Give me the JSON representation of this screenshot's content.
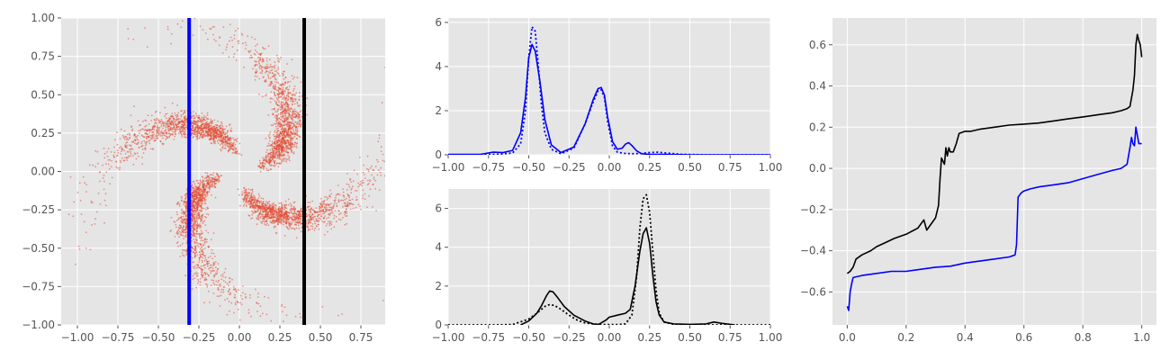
{
  "chart_data": [
    {
      "type": "scatter",
      "description": "Pinwheel point cloud with two vertical slice lines",
      "xlim": [
        -1.1,
        0.9
      ],
      "ylim": [
        -1.0,
        1.0
      ],
      "xticks": [
        -1.0,
        -0.75,
        -0.5,
        -0.25,
        0.0,
        0.25,
        0.5,
        0.75
      ],
      "yticks": [
        -1.0,
        -0.75,
        -0.5,
        -0.25,
        0.0,
        0.25,
        0.5,
        0.75,
        1.0
      ],
      "xtick_labels": [
        "−1.00",
        "−0.75",
        "−0.50",
        "−0.25",
        "0.00",
        "0.25",
        "0.50",
        "0.75"
      ],
      "ytick_labels": [
        "−1.00",
        "−0.75",
        "−0.50",
        "−0.25",
        "0.00",
        "0.25",
        "0.50",
        "0.75",
        "1.00"
      ],
      "point_color": "#E24A33",
      "arms": [
        {
          "center": [
            0.28,
            0.22
          ],
          "radius": 0.3,
          "angle": 0
        },
        {
          "center": [
            -0.22,
            0.28
          ],
          "radius": 0.3,
          "angle": 90
        },
        {
          "center": [
            -0.28,
            -0.22
          ],
          "radius": 0.3,
          "angle": 180
        },
        {
          "center": [
            0.22,
            -0.28
          ],
          "radius": 0.3,
          "angle": 270
        }
      ],
      "vlines": [
        {
          "x": -0.31,
          "color": "#0000ff"
        },
        {
          "x": 0.4,
          "color": "#000000"
        }
      ],
      "grid": true
    },
    {
      "type": "line",
      "xlim": [
        -1.0,
        1.0
      ],
      "ylim": [
        0,
        6.2
      ],
      "xticks": [
        -1.0,
        -0.75,
        -0.5,
        -0.25,
        0.0,
        0.25,
        0.5,
        0.75,
        1.0
      ],
      "yticks": [
        0,
        2,
        4,
        6
      ],
      "xtick_labels": [
        "−1.00",
        "−0.75",
        "−0.50",
        "−0.25",
        "0.00",
        "0.25",
        "0.50",
        "0.75",
        "1.00"
      ],
      "ytick_labels": [
        "0",
        "2",
        "4",
        "6"
      ],
      "series": [
        {
          "style": "solid",
          "color": "#0000ff",
          "x": [
            -1.0,
            -0.8,
            -0.72,
            -0.66,
            -0.6,
            -0.55,
            -0.52,
            -0.5,
            -0.48,
            -0.46,
            -0.43,
            -0.4,
            -0.36,
            -0.3,
            -0.22,
            -0.15,
            -0.1,
            -0.07,
            -0.05,
            -0.03,
            -0.01,
            0.02,
            0.05,
            0.08,
            0.1,
            0.12,
            0.14,
            0.17,
            0.2,
            0.25,
            0.35,
            0.5,
            1.0
          ],
          "y": [
            0.02,
            0.02,
            0.12,
            0.1,
            0.2,
            1.0,
            2.6,
            4.4,
            5.0,
            4.7,
            3.3,
            1.6,
            0.45,
            0.1,
            0.35,
            1.4,
            2.5,
            3.0,
            3.05,
            2.7,
            1.7,
            0.6,
            0.25,
            0.3,
            0.48,
            0.55,
            0.42,
            0.18,
            0.05,
            0.02,
            0.02,
            0.0,
            0.0
          ]
        },
        {
          "style": "dotted",
          "color": "#0000ff",
          "x": [
            -1.0,
            -0.8,
            -0.7,
            -0.6,
            -0.55,
            -0.52,
            -0.5,
            -0.48,
            -0.46,
            -0.44,
            -0.42,
            -0.4,
            -0.36,
            -0.3,
            -0.22,
            -0.15,
            -0.1,
            -0.07,
            -0.05,
            -0.03,
            -0.01,
            0.02,
            0.05,
            0.1,
            0.15,
            0.2,
            0.25,
            0.3,
            0.35,
            0.45,
            0.6,
            1.0
          ],
          "y": [
            0.0,
            0.0,
            0.02,
            0.08,
            0.5,
            2.0,
            4.4,
            5.8,
            5.6,
            4.0,
            2.2,
            1.0,
            0.25,
            0.05,
            0.3,
            1.4,
            2.4,
            2.9,
            2.95,
            2.6,
            1.5,
            0.4,
            0.12,
            0.06,
            0.05,
            0.06,
            0.1,
            0.12,
            0.08,
            0.02,
            0.0,
            0.0
          ]
        }
      ],
      "grid": true
    },
    {
      "type": "line",
      "xlim": [
        -1.0,
        1.0
      ],
      "ylim": [
        0,
        7.0
      ],
      "xticks": [
        -1.0,
        -0.75,
        -0.5,
        -0.25,
        0.0,
        0.25,
        0.5,
        0.75,
        1.0
      ],
      "yticks": [
        0,
        2,
        4,
        6
      ],
      "xtick_labels": [
        "−1.00",
        "−0.75",
        "−0.50",
        "−0.25",
        "0.00",
        "0.25",
        "0.50",
        "0.75",
        "1.00"
      ],
      "ytick_labels": [
        "0",
        "2",
        "4",
        "6"
      ],
      "series": [
        {
          "style": "solid",
          "color": "#000000",
          "x": [
            -0.55,
            -0.5,
            -0.45,
            -0.42,
            -0.39,
            -0.37,
            -0.35,
            -0.32,
            -0.28,
            -0.22,
            -0.15,
            -0.1,
            -0.07,
            -0.05,
            -0.02,
            0.0,
            0.05,
            0.1,
            0.13,
            0.16,
            0.19,
            0.21,
            0.23,
            0.25,
            0.27,
            0.29,
            0.31,
            0.34,
            0.4,
            0.5,
            0.6,
            0.65,
            0.7,
            0.78
          ],
          "y": [
            0.0,
            0.2,
            0.6,
            1.0,
            1.5,
            1.75,
            1.7,
            1.4,
            0.95,
            0.5,
            0.2,
            0.05,
            0.02,
            0.1,
            0.25,
            0.4,
            0.5,
            0.6,
            0.8,
            2.0,
            3.8,
            4.7,
            5.0,
            4.2,
            2.6,
            1.2,
            0.5,
            0.15,
            0.05,
            0.03,
            0.05,
            0.15,
            0.08,
            0.0
          ]
        },
        {
          "style": "dotted",
          "color": "#000000",
          "x": [
            -1.0,
            -0.7,
            -0.6,
            -0.5,
            -0.45,
            -0.4,
            -0.37,
            -0.34,
            -0.3,
            -0.25,
            -0.2,
            -0.15,
            -0.1,
            -0.05,
            0.0,
            0.05,
            0.1,
            0.14,
            0.17,
            0.19,
            0.21,
            0.23,
            0.25,
            0.27,
            0.29,
            0.31,
            0.34,
            0.4,
            0.5,
            0.6,
            0.7,
            1.0
          ],
          "y": [
            0.0,
            0.0,
            0.02,
            0.3,
            0.6,
            0.95,
            1.05,
            1.0,
            0.8,
            0.5,
            0.25,
            0.1,
            0.05,
            0.02,
            0.02,
            0.02,
            0.05,
            0.5,
            2.5,
            5.0,
            6.5,
            6.7,
            5.8,
            3.8,
            1.8,
            0.6,
            0.15,
            0.03,
            0.0,
            0.0,
            0.0,
            0.0
          ]
        }
      ],
      "grid": true
    },
    {
      "type": "line",
      "xlim": [
        -0.05,
        1.05
      ],
      "ylim": [
        -0.76,
        0.73
      ],
      "xticks": [
        0.0,
        0.2,
        0.4,
        0.6,
        0.8,
        1.0
      ],
      "yticks": [
        -0.6,
        -0.4,
        -0.2,
        0.0,
        0.2,
        0.4,
        0.6
      ],
      "xtick_labels": [
        "0.0",
        "0.2",
        "0.4",
        "0.6",
        "0.8",
        "1.0"
      ],
      "ytick_labels": [
        "−0.6",
        "−0.4",
        "−0.2",
        "0.0",
        "0.2",
        "0.4",
        "0.6"
      ],
      "series": [
        {
          "style": "solid",
          "color": "#000000",
          "x": [
            0.0,
            0.01,
            0.02,
            0.03,
            0.05,
            0.08,
            0.1,
            0.13,
            0.16,
            0.2,
            0.24,
            0.26,
            0.27,
            0.28,
            0.3,
            0.31,
            0.315,
            0.32,
            0.33,
            0.335,
            0.34,
            0.345,
            0.35,
            0.36,
            0.37,
            0.38,
            0.4,
            0.42,
            0.45,
            0.5,
            0.55,
            0.6,
            0.65,
            0.7,
            0.75,
            0.8,
            0.85,
            0.9,
            0.93,
            0.95,
            0.96,
            0.97,
            0.975,
            0.98,
            0.985,
            0.99,
            0.995,
            1.0
          ],
          "y": [
            -0.51,
            -0.5,
            -0.48,
            -0.44,
            -0.42,
            -0.4,
            -0.38,
            -0.36,
            -0.34,
            -0.32,
            -0.29,
            -0.25,
            -0.3,
            -0.28,
            -0.24,
            -0.18,
            -0.05,
            0.05,
            0.02,
            0.1,
            0.06,
            0.1,
            0.08,
            0.08,
            0.12,
            0.17,
            0.18,
            0.18,
            0.19,
            0.2,
            0.21,
            0.215,
            0.22,
            0.23,
            0.24,
            0.25,
            0.26,
            0.27,
            0.28,
            0.29,
            0.3,
            0.38,
            0.45,
            0.6,
            0.65,
            0.62,
            0.6,
            0.54
          ]
        },
        {
          "style": "solid",
          "color": "#0000ff",
          "x": [
            0.0,
            0.005,
            0.01,
            0.015,
            0.02,
            0.05,
            0.1,
            0.15,
            0.2,
            0.25,
            0.3,
            0.35,
            0.4,
            0.45,
            0.5,
            0.55,
            0.57,
            0.575,
            0.58,
            0.585,
            0.59,
            0.6,
            0.62,
            0.65,
            0.7,
            0.75,
            0.8,
            0.85,
            0.9,
            0.93,
            0.95,
            0.96,
            0.965,
            0.97,
            0.975,
            0.98,
            0.985,
            0.99,
            1.0
          ],
          "y": [
            -0.67,
            -0.69,
            -0.6,
            -0.56,
            -0.53,
            -0.52,
            -0.51,
            -0.5,
            -0.5,
            -0.49,
            -0.48,
            -0.475,
            -0.46,
            -0.45,
            -0.44,
            -0.43,
            -0.42,
            -0.37,
            -0.14,
            -0.13,
            -0.12,
            -0.11,
            -0.1,
            -0.09,
            -0.08,
            -0.07,
            -0.05,
            -0.03,
            -0.01,
            0.0,
            0.02,
            0.1,
            0.15,
            0.12,
            0.11,
            0.2,
            0.16,
            0.12,
            0.12
          ]
        }
      ],
      "grid": true
    }
  ]
}
